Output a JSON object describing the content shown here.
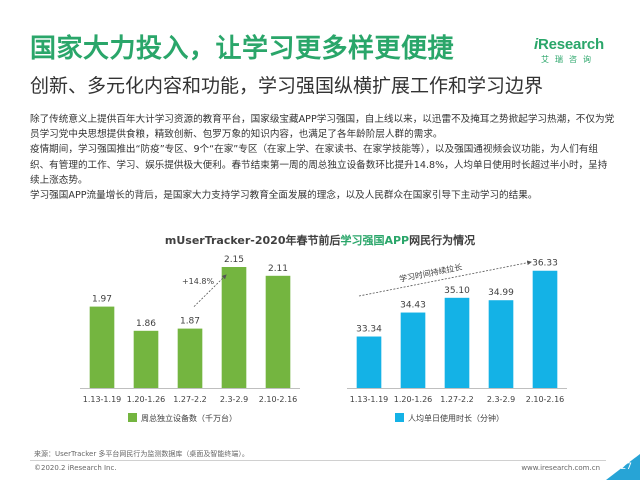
{
  "header": {
    "title": "国家大力投入，让学习更多样更便捷",
    "subtitle": "创新、多元化内容和功能，学习强国纵横扩展工作和学习边界"
  },
  "logo": {
    "main_prefix": "i",
    "main_rest": "Research",
    "sub": "艾瑞咨询"
  },
  "body": {
    "paragraphs": [
      "除了传统意义上提供百年大计学习资源的教育平台，国家级宝藏APP学习强国，自上线以来，以迅雷不及掩耳之势掀起学习热潮，不仅为党员学习党中央思想提供食粮，精致创新、包罗万象的知识内容，也满足了各年龄阶层人群的需求。",
      "疫情期间，学习强国推出“防疫”专区、9个“在家”专区（在家上学、在家读书、在家学技能等），以及强国通视频会议功能，为人们有组织、有管理的工作、学习、娱乐提供极大便利。春节结束第一周的周总独立设备数环比提升14.8%，人均单日使用时长超过半小时，呈持续上涨态势。",
      "学习强国APP流量增长的背后，是国家大力支持学习教育全面发展的理念，以及人民群众在国家引导下主动学习的结果。"
    ]
  },
  "chart_heading": {
    "prefix": "mUserTracker-2020年春节前后",
    "highlight": "学习强国APP",
    "suffix": "网民行为情况"
  },
  "chart_data": [
    {
      "type": "bar",
      "categories": [
        "1.13-1.19",
        "1.20-1.26",
        "1.27-2.2",
        "2.3-2.9",
        "2.10-2.16"
      ],
      "series": [
        {
          "name": "周总独立设备数（千万台）",
          "values": [
            1.97,
            1.86,
            1.87,
            2.15,
            2.11
          ]
        }
      ],
      "value_labels": [
        "1.97",
        "1.86",
        "1.87",
        "2.15",
        "2.11"
      ],
      "annotation": "+14.8%",
      "ylim": [
        1.6,
        2.2
      ],
      "color": "#74b540"
    },
    {
      "type": "bar",
      "categories": [
        "1.13-1.19",
        "1.20-1.26",
        "1.27-2.2",
        "2.3-2.9",
        "2.10-2.16"
      ],
      "series": [
        {
          "name": "人均单日使用时长（分钟）",
          "values": [
            33.34,
            34.43,
            35.1,
            34.99,
            36.33
          ]
        }
      ],
      "value_labels": [
        "33.34",
        "34.43",
        "35.10",
        "34.99",
        "36.33"
      ],
      "annotation": "学习时间持续拉长",
      "ylim": [
        31,
        37
      ],
      "color": "#14b2e6"
    }
  ],
  "footer": {
    "source": "来源：UserTracker 多平台网民行为监测数据库（桌面及智能终端）。",
    "copyright": "©2020.2 iResearch Inc.",
    "website": "www.iresearch.com.cn",
    "page": "27"
  },
  "colors": {
    "brand": "#2aa66a",
    "green_bar": "#74b540",
    "blue_bar": "#14b2e6",
    "footer_triangle": "#27a4d6"
  }
}
